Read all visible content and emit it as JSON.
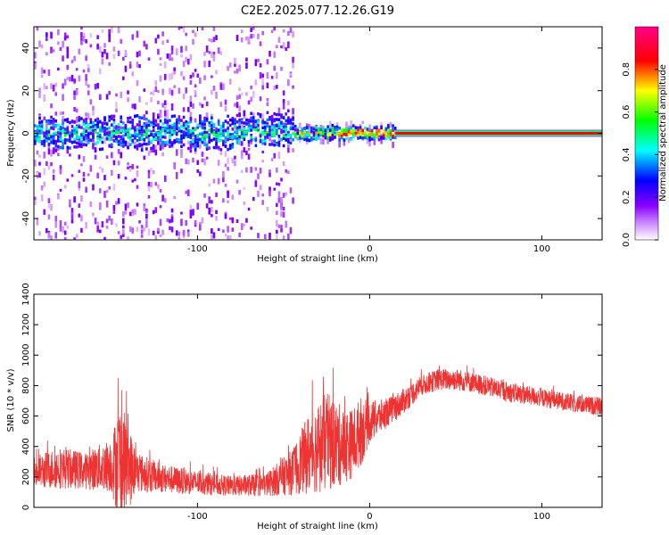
{
  "title": "C2E2.2025.077.12.26.G19",
  "chart_data": [
    {
      "type": "heatmap",
      "title": "C2E2.2025.077.12.26.G19",
      "xlabel": "Height of straight line (km)",
      "ylabel": "Frequency (Hz)",
      "xlim": [
        -195,
        135
      ],
      "ylim": [
        -50,
        50
      ],
      "xticks": [
        -100,
        0,
        100
      ],
      "yticks": [
        -40,
        -20,
        0,
        20,
        40
      ],
      "colorbar": {
        "label": "Normalized spectral amplitude",
        "range": [
          0.0,
          1.0
        ],
        "ticks": [
          0.0,
          0.2,
          0.4,
          0.6,
          0.8
        ],
        "colormap": [
          "#ffffff",
          "#8800ff",
          "#0000ff",
          "#00ffff",
          "#00ff00",
          "#ffff00",
          "#ff0000",
          "#ff0088"
        ]
      },
      "description_regions": [
        {
          "x_range": [
            -195,
            -45
          ],
          "freq_spread": 50,
          "peak_amplitude": 0.45,
          "note": "broadband noisy signal"
        },
        {
          "x_range": [
            -45,
            15
          ],
          "freq_spread": 5,
          "peak_amplitude": 0.7,
          "note": "converging carrier"
        },
        {
          "x_range": [
            15,
            135
          ],
          "freq_spread": 1,
          "peak_amplitude": 1.0,
          "note": "stable carrier at 0 Hz"
        }
      ]
    },
    {
      "type": "line",
      "xlabel": "Height of straight line (km)",
      "ylabel": "SNR (10 * v/v)",
      "xlim": [
        -195,
        135
      ],
      "ylim": [
        0,
        1400
      ],
      "xticks": [
        -100,
        0,
        100
      ],
      "yticks": [
        0,
        200,
        400,
        600,
        800,
        1000,
        1200,
        1400
      ],
      "line_color": "#ee3333",
      "series": [
        {
          "name": "SNR",
          "x": [
            -195,
            -180,
            -165,
            -150,
            -145,
            -135,
            -120,
            -100,
            -80,
            -60,
            -45,
            -35,
            -25,
            -15,
            -10,
            -5,
            0,
            10,
            20,
            30,
            40,
            50,
            60,
            80,
            100,
            120,
            135
          ],
          "mean": [
            230,
            260,
            240,
            280,
            300,
            230,
            190,
            160,
            140,
            150,
            230,
            360,
            430,
            400,
            420,
            500,
            560,
            620,
            700,
            800,
            840,
            840,
            820,
            760,
            720,
            680,
            660
          ],
          "amplitude": [
            180,
            230,
            200,
            300,
            700,
            220,
            160,
            130,
            110,
            130,
            250,
            450,
            550,
            420,
            380,
            380,
            230,
            160,
            140,
            110,
            120,
            120,
            110,
            110,
            100,
            100,
            100
          ]
        }
      ]
    }
  ]
}
